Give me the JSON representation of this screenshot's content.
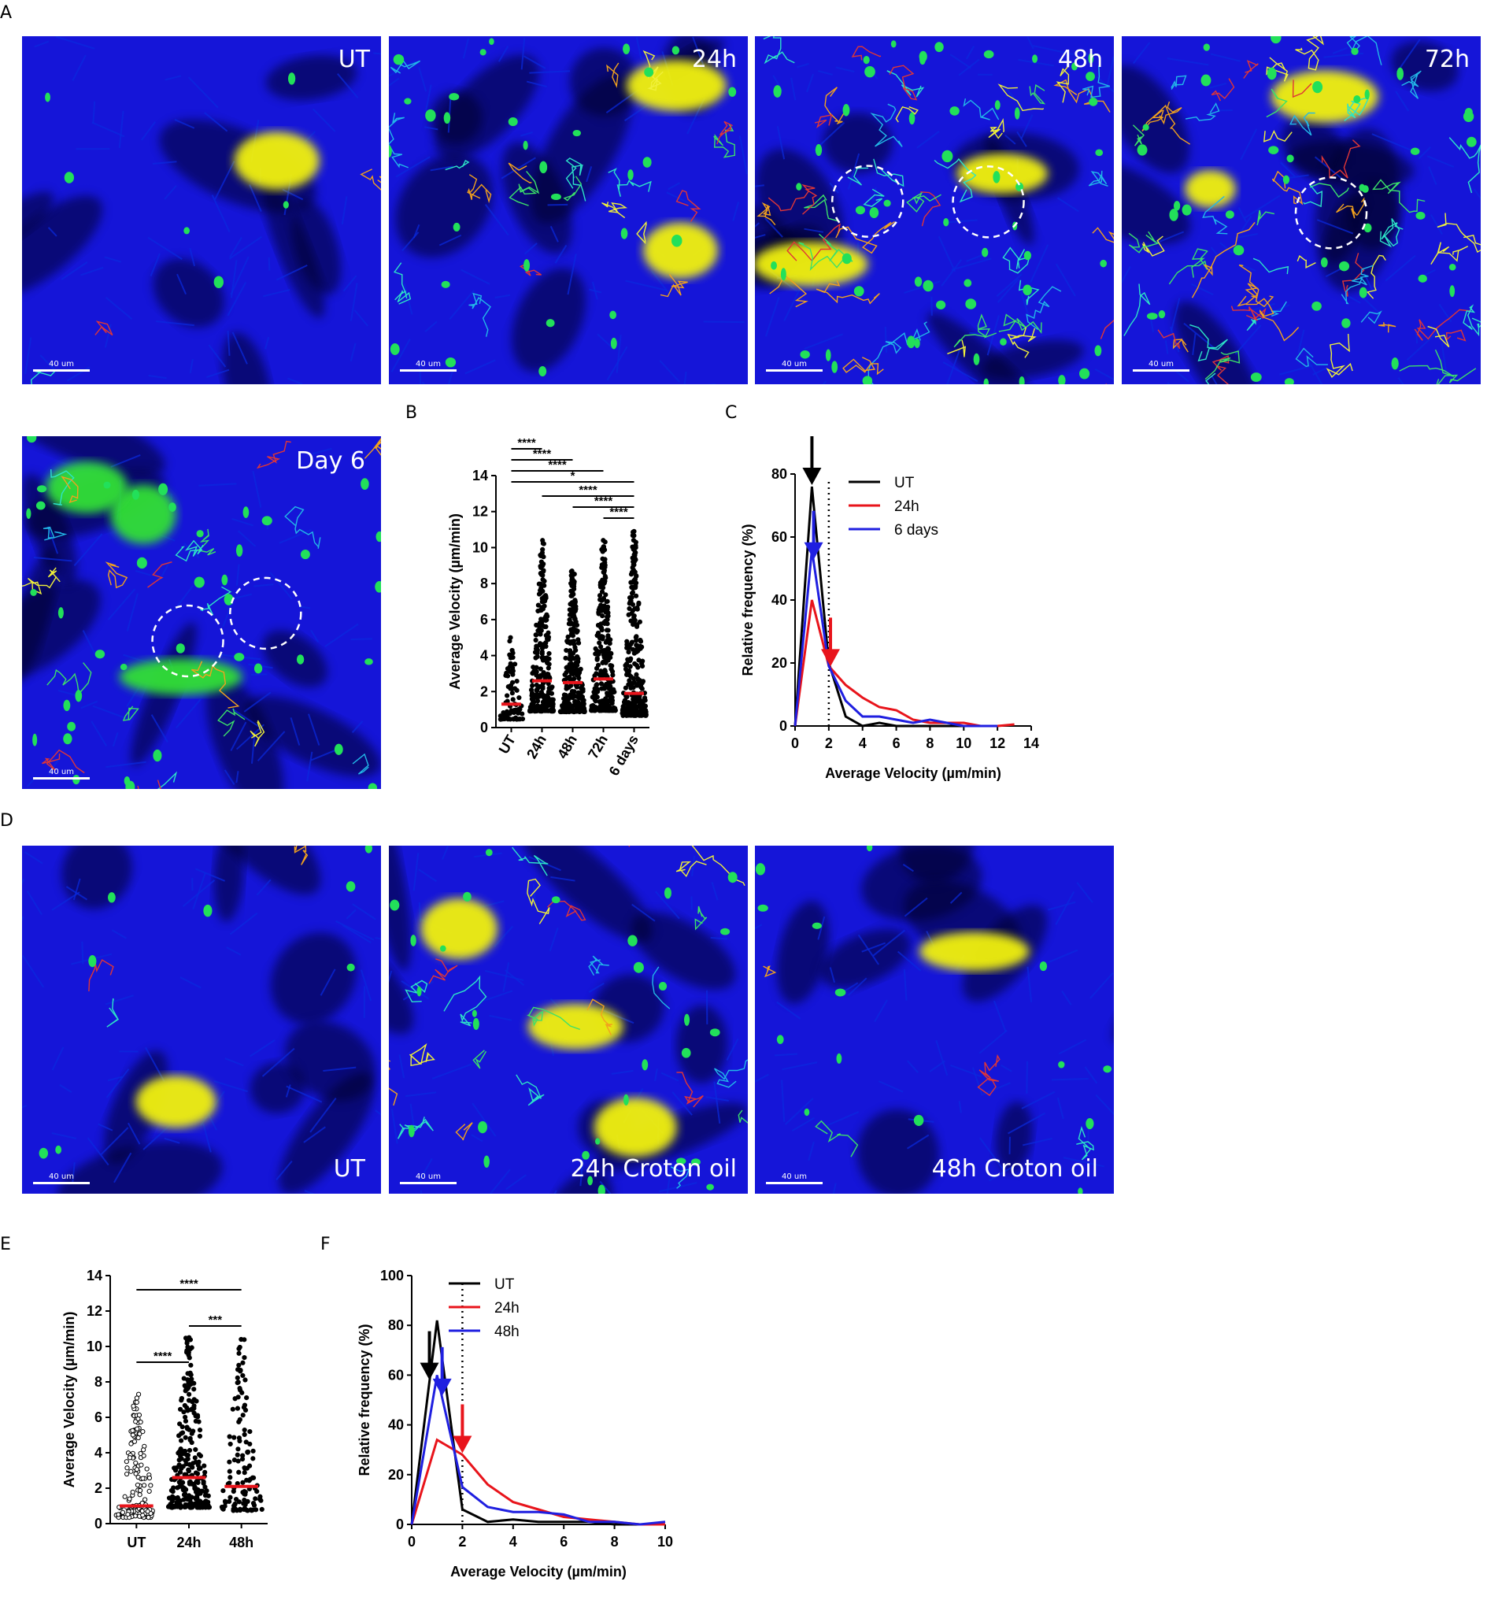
{
  "panels": {
    "A": "A",
    "B": "B",
    "C": "C",
    "D": "D",
    "E": "E",
    "F": "F"
  },
  "panel_a": {
    "images": [
      {
        "label": "UT",
        "scale": "40 um"
      },
      {
        "label": "24h",
        "scale": "40 um"
      },
      {
        "label": "48h",
        "scale": "40 um"
      },
      {
        "label": "72h",
        "scale": "40 um"
      },
      {
        "label": "Day 6",
        "scale": "40 um"
      }
    ]
  },
  "panel_d": {
    "images": [
      {
        "label": "UT",
        "scale": "40 um"
      },
      {
        "label": "24h Croton oil",
        "scale": "40 um"
      },
      {
        "label": "48h Croton oil",
        "scale": "40 um"
      }
    ]
  },
  "colors": {
    "ut": "#000000",
    "h24": "#e8141b",
    "d6": "#1f1fe0",
    "mean": "#e8141b",
    "tissue": "#1515d8",
    "cell": "#22e05a",
    "hair": "#f2f20a"
  },
  "chart_data": [
    {
      "id": "B",
      "type": "scatter",
      "ylabel": "Average Velocity (µm/min)",
      "categories": [
        "UT",
        "24h",
        "48h",
        "72h",
        "6 days"
      ],
      "ylim": [
        0,
        14
      ],
      "yticks": [
        "0",
        "2",
        "4",
        "6",
        "8",
        "10",
        "12",
        "14"
      ],
      "means": [
        1.3,
        2.6,
        2.5,
        2.7,
        1.9
      ],
      "spread_max": [
        5.0,
        10.4,
        8.7,
        10.4,
        10.9
      ],
      "significance": [
        {
          "from": "UT",
          "to": "24h",
          "label": "****"
        },
        {
          "from": "UT",
          "to": "48h",
          "label": "****"
        },
        {
          "from": "UT",
          "to": "72h",
          "label": "****"
        },
        {
          "from": "UT",
          "to": "6 days",
          "label": "*"
        },
        {
          "from": "24h",
          "to": "6 days",
          "label": "****"
        },
        {
          "from": "48h",
          "to": "6 days",
          "label": "****"
        },
        {
          "from": "72h",
          "to": "6 days",
          "label": "****"
        }
      ]
    },
    {
      "id": "C",
      "type": "line",
      "xlabel": "Average Velocity (µm/min)",
      "ylabel": "Relative frequency (%)",
      "xlim": [
        0,
        14
      ],
      "ylim": [
        0,
        80
      ],
      "xticks": [
        "0",
        "2",
        "4",
        "6",
        "8",
        "10",
        "12",
        "14"
      ],
      "yticks": [
        "0",
        "20",
        "40",
        "60",
        "80"
      ],
      "dotted_x": 2,
      "series": [
        {
          "name": "UT",
          "x": [
            0,
            1,
            2,
            3,
            4,
            5,
            6,
            7,
            8,
            9,
            10
          ],
          "y": [
            0,
            76,
            20,
            3,
            0,
            1,
            0,
            0,
            0,
            0,
            0
          ]
        },
        {
          "name": "24h",
          "x": [
            0,
            1,
            2,
            3,
            4,
            5,
            6,
            7,
            8,
            9,
            10,
            11,
            12,
            13
          ],
          "y": [
            0,
            40,
            19,
            13,
            9,
            6,
            5,
            2,
            1,
            1,
            1,
            0,
            0,
            0.5
          ]
        },
        {
          "name": "6 days",
          "x": [
            0,
            1,
            2,
            3,
            4,
            5,
            6,
            7,
            8,
            9,
            10,
            11,
            12
          ],
          "y": [
            0,
            56,
            19,
            8,
            3,
            3,
            2,
            1,
            2,
            1,
            0,
            0,
            0
          ]
        }
      ],
      "arrows": [
        {
          "series": "UT",
          "x": 1.0
        },
        {
          "series": "6 days",
          "x": 1.1
        },
        {
          "series": "24h",
          "x": 2.1
        }
      ],
      "legend": [
        "UT",
        "24h",
        "6 days"
      ]
    },
    {
      "id": "E",
      "type": "scatter",
      "ylabel": "Average Velocity (µm/min)",
      "categories": [
        "UT",
        "24h",
        "48h"
      ],
      "ylim": [
        0,
        14
      ],
      "yticks": [
        "0",
        "2",
        "4",
        "6",
        "8",
        "10",
        "12",
        "14"
      ],
      "means": [
        1.0,
        2.6,
        2.1
      ],
      "spread_max": [
        7.3,
        10.5,
        10.4
      ],
      "significance": [
        {
          "from": "UT",
          "to": "48h",
          "label": "****"
        },
        {
          "from": "24h",
          "to": "48h",
          "label": "***"
        },
        {
          "from": "UT",
          "to": "24h",
          "label": "****"
        }
      ]
    },
    {
      "id": "F",
      "type": "line",
      "xlabel": "Average Velocity (µm/min)",
      "ylabel": "Relative frequency (%)",
      "xlim": [
        0,
        10
      ],
      "ylim": [
        0,
        100
      ],
      "xticks": [
        "0",
        "2",
        "4",
        "6",
        "8",
        "10"
      ],
      "yticks": [
        "0",
        "20",
        "40",
        "60",
        "80",
        "100"
      ],
      "dotted_x": 2,
      "series": [
        {
          "name": "UT",
          "x": [
            0,
            1,
            2,
            3,
            4,
            5,
            6,
            7,
            8,
            9,
            10
          ],
          "y": [
            0,
            82,
            6,
            1,
            2,
            1,
            1,
            1,
            0,
            0,
            0
          ]
        },
        {
          "name": "24h",
          "x": [
            0,
            1,
            2,
            3,
            4,
            5,
            6,
            7,
            8,
            9,
            10
          ],
          "y": [
            0,
            34,
            28,
            16,
            9,
            6,
            3,
            2,
            1,
            0,
            0
          ]
        },
        {
          "name": "48h",
          "x": [
            0,
            1,
            2,
            3,
            4,
            5,
            6,
            7,
            8,
            9,
            10
          ],
          "y": [
            0,
            60,
            15,
            7,
            5,
            5,
            4,
            1,
            1,
            0,
            1
          ]
        }
      ],
      "arrows": [
        {
          "series": "UT",
          "x": 0.7
        },
        {
          "series": "48h",
          "x": 1.2
        },
        {
          "series": "24h",
          "x": 2.0
        }
      ],
      "legend": [
        "UT",
        "24h",
        "48h"
      ]
    }
  ]
}
